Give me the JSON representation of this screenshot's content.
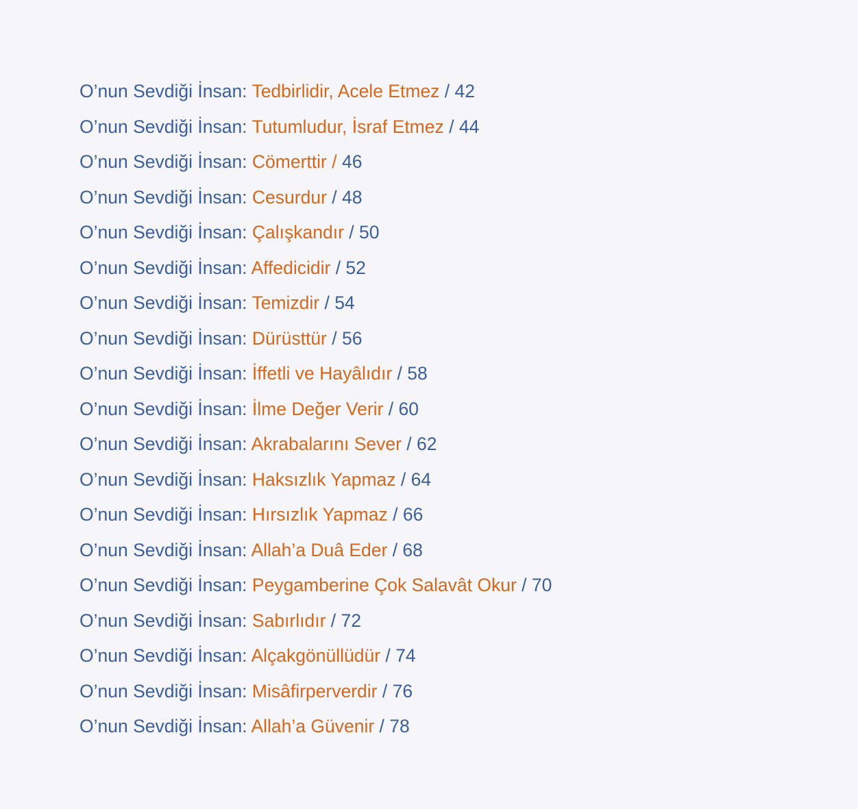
{
  "colors": {
    "prefix": "#3b5f9b",
    "title": "#d2691e",
    "background": "#f5f5fa"
  },
  "entries": [
    {
      "prefix": "O’nun Sevdiği İnsan: ",
      "title": "Tedbirlidir, Acele Etmez",
      "sep": " / ",
      "page": "42"
    },
    {
      "prefix": "O’nun Sevdiği İnsan: ",
      "title": "Tutumludur, İsraf Etmez",
      "sep": " / ",
      "page": "44"
    },
    {
      "prefix": "O’nun Sevdiği İnsan: ",
      "title": "Cömerttir /",
      "sep": " ",
      "page": "46"
    },
    {
      "prefix": "O’nun Sevdiği İnsan: ",
      "title": "Cesurdur",
      "sep": " / ",
      "page": "48"
    },
    {
      "prefix": "O’nun Sevdiği İnsan: ",
      "title": "Çalışkandır",
      "sep": " / ",
      "page": "50"
    },
    {
      "prefix": "O’nun Sevdiği İnsan: ",
      "title": "Affedicidir",
      "sep": " / ",
      "page": "52"
    },
    {
      "prefix": "O’nun Sevdiği İnsan: ",
      "title": "Temizdir",
      "sep": " / ",
      "page": "54"
    },
    {
      "prefix": "O’nun Sevdiği İnsan: ",
      "title": "Dürüsttür",
      "sep": " / ",
      "page": "56"
    },
    {
      "prefix": "O’nun Sevdiği İnsan: ",
      "title": "İffetli ve Hayâlıdır",
      "sep": " / ",
      "page": "58"
    },
    {
      "prefix": "O’nun Sevdiği İnsan: ",
      "title": "İlme Değer Verir",
      "sep": " / ",
      "page": "60"
    },
    {
      "prefix": "O’nun Sevdiği İnsan: ",
      "title": "Akrabalarını Sever",
      "sep": " / ",
      "page": "62"
    },
    {
      "prefix": "O’nun Sevdiği İnsan: ",
      "title": "Haksızlık Yapmaz",
      "sep": " / ",
      "page": "64"
    },
    {
      "prefix": "O’nun Sevdiği İnsan: ",
      "title": "Hırsızlık Yapmaz",
      "sep": " / ",
      "page": "66"
    },
    {
      "prefix": "O’nun Sevdiği İnsan: ",
      "title": "Allah’a Duâ Eder",
      "sep": " / ",
      "page": "68"
    },
    {
      "prefix": "O’nun Sevdiği İnsan: ",
      "title": "Peygamberine Çok Salavât Okur",
      "sep": " / ",
      "page": "70"
    },
    {
      "prefix": "O’nun Sevdiği İnsan: ",
      "title": "Sabırlıdır",
      "sep": " / ",
      "page": "72"
    },
    {
      "prefix": "O’nun Sevdiği İnsan: ",
      "title": "Alçakgönüllüdür",
      "sep": " / ",
      "page": "74"
    },
    {
      "prefix": "O’nun Sevdiği İnsan: ",
      "title": "Misâfirperverdir",
      "sep": " / ",
      "page": "76"
    },
    {
      "prefix": "O’nun Sevdiği İnsan: ",
      "title": "Allah’a Güvenir",
      "sep": " / ",
      "page": "78"
    }
  ]
}
